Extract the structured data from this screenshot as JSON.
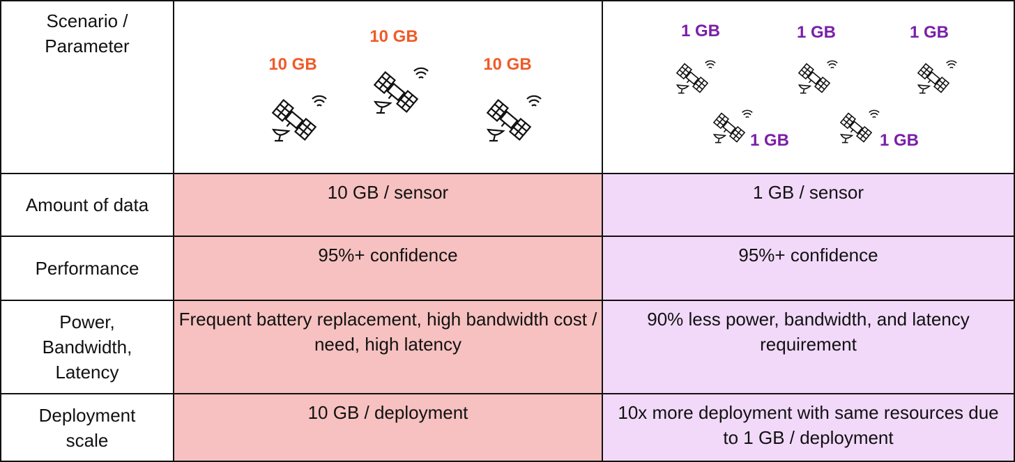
{
  "header": {
    "label": "Scenario / Parameter",
    "left_labels": [
      "10 GB",
      "10 GB",
      "10 GB"
    ],
    "right_labels": [
      "1 GB",
      "1 GB",
      "1 GB",
      "1 GB",
      "1 GB"
    ]
  },
  "table": {
    "rows": [
      {
        "label": "Amount of data",
        "cells": [
          "10 GB / sensor",
          "1 GB / sensor"
        ]
      },
      {
        "label": "Performance",
        "cells": [
          "95%+ confidence",
          "95%+ confidence"
        ]
      },
      {
        "label": "Power, Bandwidth, Latency",
        "cells": [
          "Frequent battery replacement, high bandwidth cost / need, high latency",
          "90% less power, bandwidth, and latency requirement"
        ]
      },
      {
        "label": "Deployment scale",
        "cells": [
          "10 GB / deployment",
          "10x more deployment with same resources due to 1 GB / deployment"
        ]
      }
    ]
  }
}
